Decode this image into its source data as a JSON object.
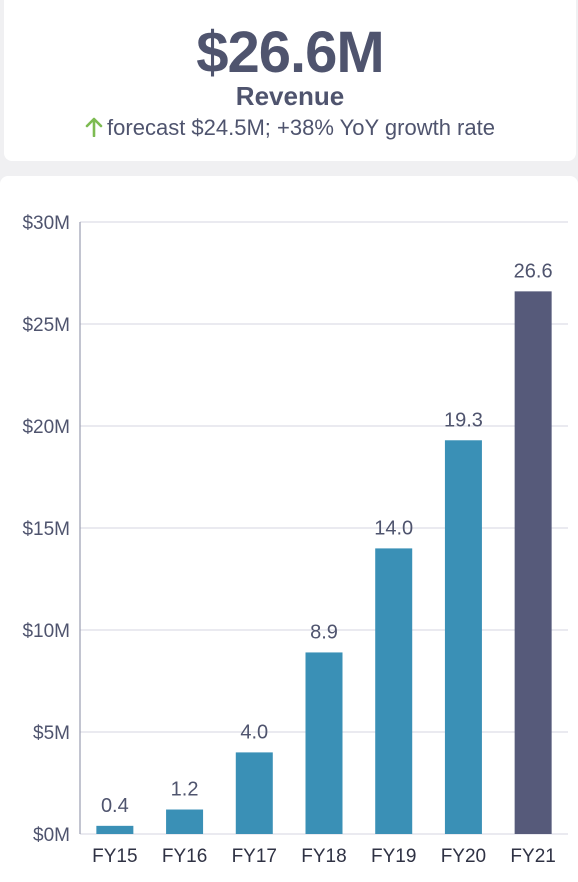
{
  "kpi": {
    "value": "$26.6M",
    "label": "Revenue",
    "subtitle": "forecast $24.5M; +38% YoY growth rate",
    "trend_icon": "arrow-up-icon",
    "trend_color": "#7dbb52"
  },
  "chart_data": {
    "type": "bar",
    "categories": [
      "FY15",
      "FY16",
      "FY17",
      "FY18",
      "FY19",
      "FY20",
      "FY21"
    ],
    "values": [
      0.4,
      1.2,
      4.0,
      8.9,
      14.0,
      19.3,
      26.6
    ],
    "data_labels": [
      "0.4",
      "1.2",
      "4.0",
      "8.9",
      "14.0",
      "19.3",
      "26.6"
    ],
    "y_ticks": [
      0,
      5,
      10,
      15,
      20,
      25,
      30
    ],
    "y_tick_labels": [
      "$0M",
      "$5M",
      "$10M",
      "$15M",
      "$20M",
      "$25M",
      "$30M"
    ],
    "ylim": [
      0,
      30
    ],
    "grid": true,
    "legend": "none",
    "title": "",
    "xlabel": "",
    "ylabel": "",
    "colors": {
      "bar": "#3a90b6",
      "highlight_bar": "#565a7a",
      "grid": "#d4d6e0",
      "text": "#4f546e"
    },
    "highlight_index": 6
  }
}
